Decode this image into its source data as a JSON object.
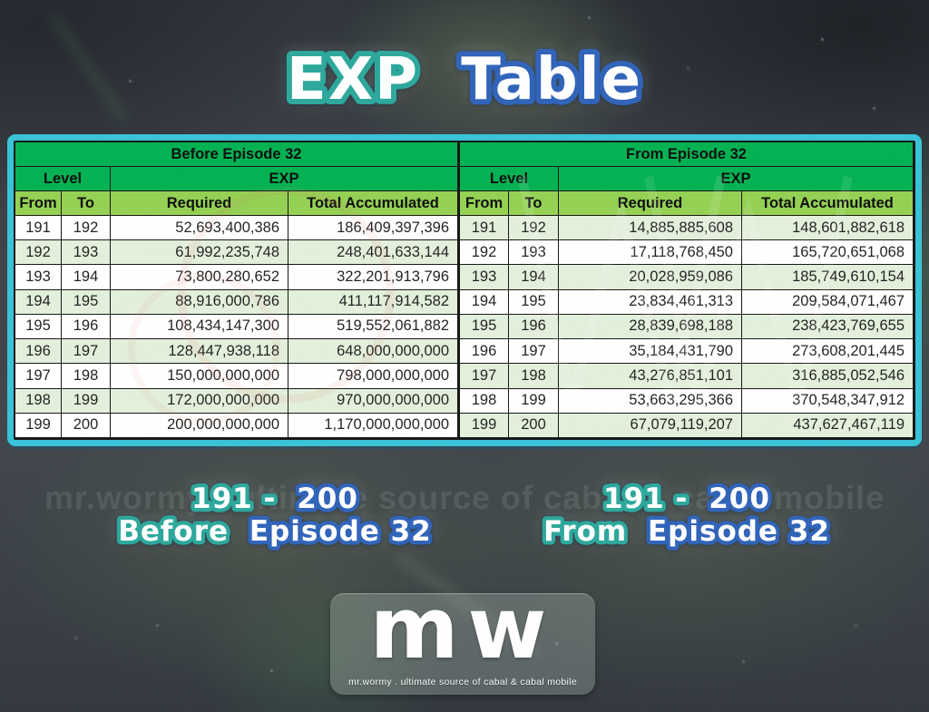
{
  "title": {
    "word1": "EXP",
    "word2": "Table"
  },
  "colors": {
    "header_green": "#00b050",
    "subheader_green": "#92d050",
    "row_tint": "#e2efda",
    "table_frame_cyan": "#36c2d6",
    "teal_outline": "#2aa79a",
    "blue_outline": "#2e62b8"
  },
  "chart_data": [
    {
      "type": "table",
      "title": "Before Episode 32",
      "group_headers": {
        "level": "Level",
        "exp": "EXP"
      },
      "columns": [
        "From",
        "To",
        "Required",
        "Total Accumulated"
      ],
      "rows": [
        [
          "191",
          "192",
          "52,693,400,386",
          "186,409,397,396"
        ],
        [
          "192",
          "193",
          "61,992,235,748",
          "248,401,633,144"
        ],
        [
          "193",
          "194",
          "73,800,280,652",
          "322,201,913,796"
        ],
        [
          "194",
          "195",
          "88,916,000,786",
          "411,117,914,582"
        ],
        [
          "195",
          "196",
          "108,434,147,300",
          "519,552,061,882"
        ],
        [
          "196",
          "197",
          "128,447,938,118",
          "648,000,000,000"
        ],
        [
          "197",
          "198",
          "150,000,000,000",
          "798,000,000,000"
        ],
        [
          "198",
          "199",
          "172,000,000,000",
          "970,000,000,000"
        ],
        [
          "199",
          "200",
          "200,000,000,000",
          "1,170,000,000,000"
        ]
      ]
    },
    {
      "type": "table",
      "title": "From Episode 32",
      "group_headers": {
        "level": "Level",
        "exp": "EXP"
      },
      "columns": [
        "From",
        "To",
        "Required",
        "Total Accumulated"
      ],
      "rows": [
        [
          "191",
          "192",
          "14,885,885,608",
          "148,601,882,618"
        ],
        [
          "192",
          "193",
          "17,118,768,450",
          "165,720,651,068"
        ],
        [
          "193",
          "194",
          "20,028,959,086",
          "185,749,610,154"
        ],
        [
          "194",
          "195",
          "23,834,461,313",
          "209,584,071,467"
        ],
        [
          "195",
          "196",
          "28,839,698,188",
          "238,423,769,655"
        ],
        [
          "196",
          "197",
          "35,184,431,790",
          "273,608,201,445"
        ],
        [
          "197",
          "198",
          "43,276,851,101",
          "316,885,052,546"
        ],
        [
          "198",
          "199",
          "53,663,295,366",
          "370,548,347,912"
        ],
        [
          "199",
          "200",
          "67,079,119,207",
          "437,627,467,119"
        ]
      ]
    }
  ],
  "captions": [
    {
      "line1_teal": "191 -",
      "line1_blue": "200",
      "line2_teal": "Before",
      "line2_blue": "Episode 32"
    },
    {
      "line1_teal": "191 -",
      "line1_blue": "200",
      "line2_teal": "From",
      "line2_blue": "Episode 32"
    }
  ],
  "watermark": "mr.wormy . ultimate source of cabal & cabal mobile",
  "logo": {
    "monogram": "mw",
    "tagline": "mr.wormy . ultimate source of cabal & cabal mobile"
  }
}
